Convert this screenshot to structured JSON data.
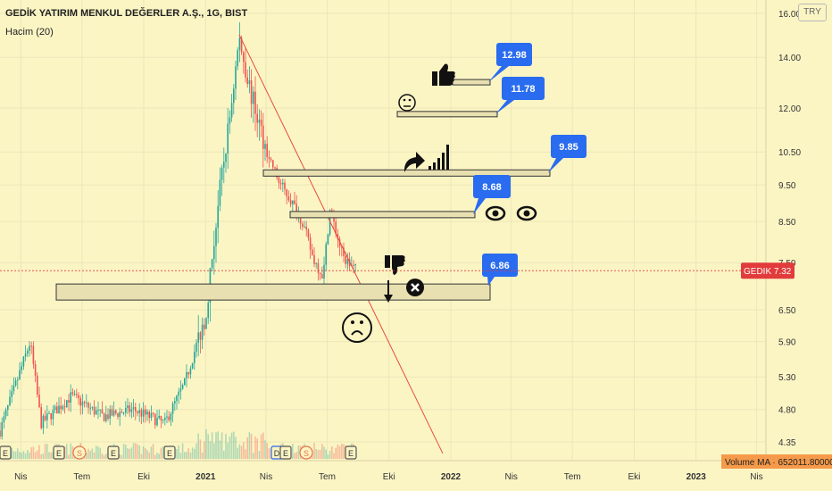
{
  "header": {
    "symbol_title": "GEDİK YATIRIM MENKUL DEĞERLER A.Ş., 1G, BIST",
    "indicator": "Hacim (20)",
    "currency": "TRY"
  },
  "price_label": {
    "ticker": "GEDIK",
    "value": "7.32",
    "color": "#e23b3b"
  },
  "volume_label": "Volume MA · 652011.80000",
  "colors": {
    "background": "#fbf5c4",
    "up": "#26a69a",
    "down": "#ef5350",
    "trendline": "#e84b3c",
    "zone_fill": "#e8e0b0",
    "callout": "#2a6cf0",
    "grid": "#ece6b9"
  },
  "chart_data": {
    "type": "candlestick",
    "y_scale": "log",
    "ylim": [
      4.2,
      16.3
    ],
    "y_ticks": [
      4.35,
      4.8,
      5.3,
      5.9,
      6.5,
      7.5,
      8.5,
      9.5,
      10.5,
      12.0,
      14.0,
      16.0
    ],
    "x_ticks": [
      "Nis",
      "Tem",
      "Eki",
      "2021",
      "Nis",
      "Tem",
      "Eki",
      "2022",
      "Nis",
      "Tem",
      "Eki",
      "2023",
      "Nis"
    ],
    "x_tick_bold": [
      "2021",
      "2022",
      "2023"
    ],
    "x_range": [
      "2020-03",
      "2023-05"
    ],
    "last_price": 7.32,
    "price_path": [
      [
        "2020-03-01",
        4.5
      ],
      [
        "2020-04-15",
        5.9
      ],
      [
        "2020-05-01",
        4.6
      ],
      [
        "2020-06-15",
        5.0
      ],
      [
        "2020-08-01",
        4.7
      ],
      [
        "2020-09-15",
        4.8
      ],
      [
        "2020-11-01",
        4.6
      ],
      [
        "2020-12-01",
        5.2
      ],
      [
        "2021-01-01",
        6.4
      ],
      [
        "2021-01-20",
        9.0
      ],
      [
        "2021-02-05",
        11.5
      ],
      [
        "2021-02-20",
        14.8
      ],
      [
        "2021-03-10",
        12.5
      ],
      [
        "2021-04-01",
        10.6
      ],
      [
        "2021-04-20",
        9.6
      ],
      [
        "2021-05-10",
        9.0
      ],
      [
        "2021-05-25",
        8.5
      ],
      [
        "2021-06-10",
        7.6
      ],
      [
        "2021-06-25",
        7.2
      ],
      [
        "2021-07-05",
        8.8
      ],
      [
        "2021-07-25",
        7.6
      ],
      [
        "2021-08-15",
        7.32
      ]
    ],
    "trendline": {
      "from": [
        "2021-02-20",
        15.0
      ],
      "to": [
        "2021-12-20",
        4.2
      ]
    },
    "zones": [
      {
        "label": "12.98",
        "value": 12.98
      },
      {
        "label": "11.78",
        "value": 11.78
      },
      {
        "label": "9.85",
        "value": 9.85
      },
      {
        "label": "8.68",
        "value": 8.68
      },
      {
        "label": "6.86",
        "value": 6.86
      }
    ],
    "earnings_markers": [
      "E",
      "E",
      "S",
      "E",
      "E",
      "D",
      "E",
      "S",
      "E"
    ]
  }
}
